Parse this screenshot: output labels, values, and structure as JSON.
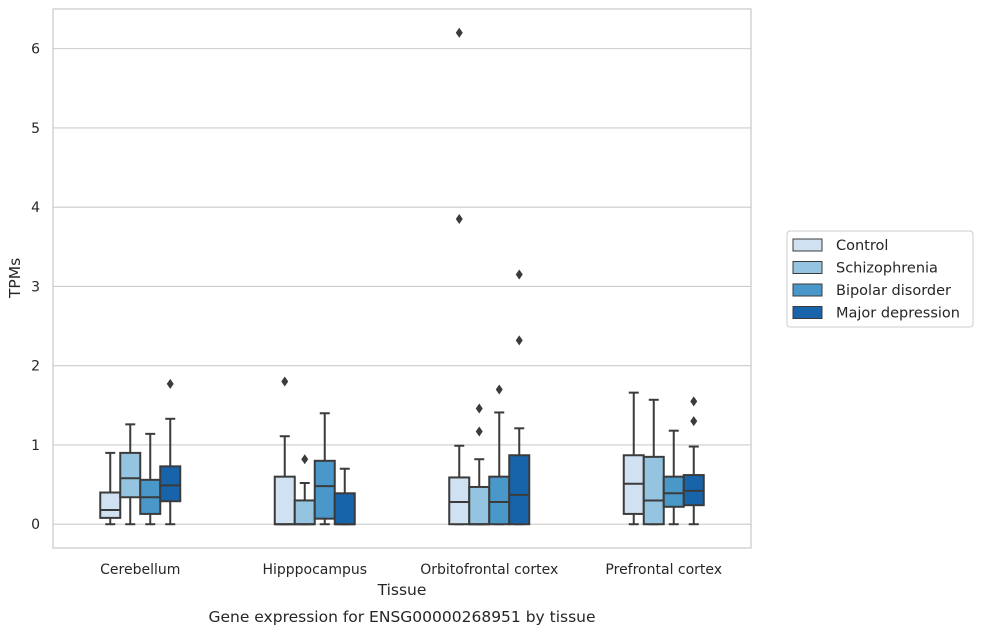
{
  "chart_data": {
    "type": "box",
    "title": "",
    "caption": "Gene expression for ENSG00000268951 by tissue",
    "xlabel": "Tissue",
    "ylabel": "TPMs",
    "ylim": [
      -0.3,
      6.5
    ],
    "yticks": [
      "0",
      "1",
      "2",
      "3",
      "4",
      "5",
      "6"
    ],
    "grid": "horizontal",
    "legend_position": "right",
    "categories": [
      "Cerebellum",
      "Hipppocampus",
      "Orbitofrontal cortex",
      "Prefrontal cortex"
    ],
    "series": [
      {
        "name": "Control",
        "color": "#d0e1f2",
        "boxes": [
          {
            "whisker_low": 0.0,
            "q1": 0.08,
            "median": 0.18,
            "q3": 0.4,
            "whisker_high": 0.9,
            "outliers": []
          },
          {
            "whisker_low": 0.0,
            "q1": 0.0,
            "median": 0.0,
            "q3": 0.6,
            "whisker_high": 1.11,
            "outliers": [
              1.8
            ]
          },
          {
            "whisker_low": 0.0,
            "q1": 0.0,
            "median": 0.28,
            "q3": 0.59,
            "whisker_high": 0.99,
            "outliers": [
              3.85,
              6.2
            ]
          },
          {
            "whisker_low": 0.0,
            "q1": 0.13,
            "median": 0.51,
            "q3": 0.87,
            "whisker_high": 1.66,
            "outliers": []
          }
        ]
      },
      {
        "name": "Schizophrenia",
        "color": "#94c4df",
        "boxes": [
          {
            "whisker_low": 0.0,
            "q1": 0.34,
            "median": 0.58,
            "q3": 0.9,
            "whisker_high": 1.26,
            "outliers": []
          },
          {
            "whisker_low": 0.0,
            "q1": 0.0,
            "median": 0.0,
            "q3": 0.3,
            "whisker_high": 0.52,
            "outliers": [
              0.82
            ]
          },
          {
            "whisker_low": 0.0,
            "q1": 0.0,
            "median": 0.0,
            "q3": 0.47,
            "whisker_high": 0.82,
            "outliers": [
              1.17,
              1.46
            ]
          },
          {
            "whisker_low": 0.0,
            "q1": 0.0,
            "median": 0.3,
            "q3": 0.85,
            "whisker_high": 1.57,
            "outliers": []
          }
        ]
      },
      {
        "name": "Bipolar disorder",
        "color": "#4a98c9",
        "boxes": [
          {
            "whisker_low": 0.0,
            "q1": 0.13,
            "median": 0.34,
            "q3": 0.56,
            "whisker_high": 1.14,
            "outliers": []
          },
          {
            "whisker_low": 0.0,
            "q1": 0.07,
            "median": 0.48,
            "q3": 0.8,
            "whisker_high": 1.4,
            "outliers": []
          },
          {
            "whisker_low": 0.0,
            "q1": 0.0,
            "median": 0.28,
            "q3": 0.6,
            "whisker_high": 1.41,
            "outliers": [
              1.7
            ]
          },
          {
            "whisker_low": 0.0,
            "q1": 0.22,
            "median": 0.39,
            "q3": 0.6,
            "whisker_high": 1.18,
            "outliers": []
          }
        ]
      },
      {
        "name": "Major depression",
        "color": "#1764ab",
        "boxes": [
          {
            "whisker_low": 0.0,
            "q1": 0.29,
            "median": 0.49,
            "q3": 0.73,
            "whisker_high": 1.33,
            "outliers": [
              1.77
            ]
          },
          {
            "whisker_low": 0.0,
            "q1": 0.0,
            "median": 0.0,
            "q3": 0.39,
            "whisker_high": 0.7,
            "outliers": []
          },
          {
            "whisker_low": 0.0,
            "q1": 0.0,
            "median": 0.37,
            "q3": 0.87,
            "whisker_high": 1.21,
            "outliers": [
              2.32,
              3.15
            ]
          },
          {
            "whisker_low": 0.0,
            "q1": 0.24,
            "median": 0.42,
            "q3": 0.62,
            "whisker_high": 0.98,
            "outliers": [
              1.3,
              1.55
            ]
          }
        ]
      }
    ]
  }
}
